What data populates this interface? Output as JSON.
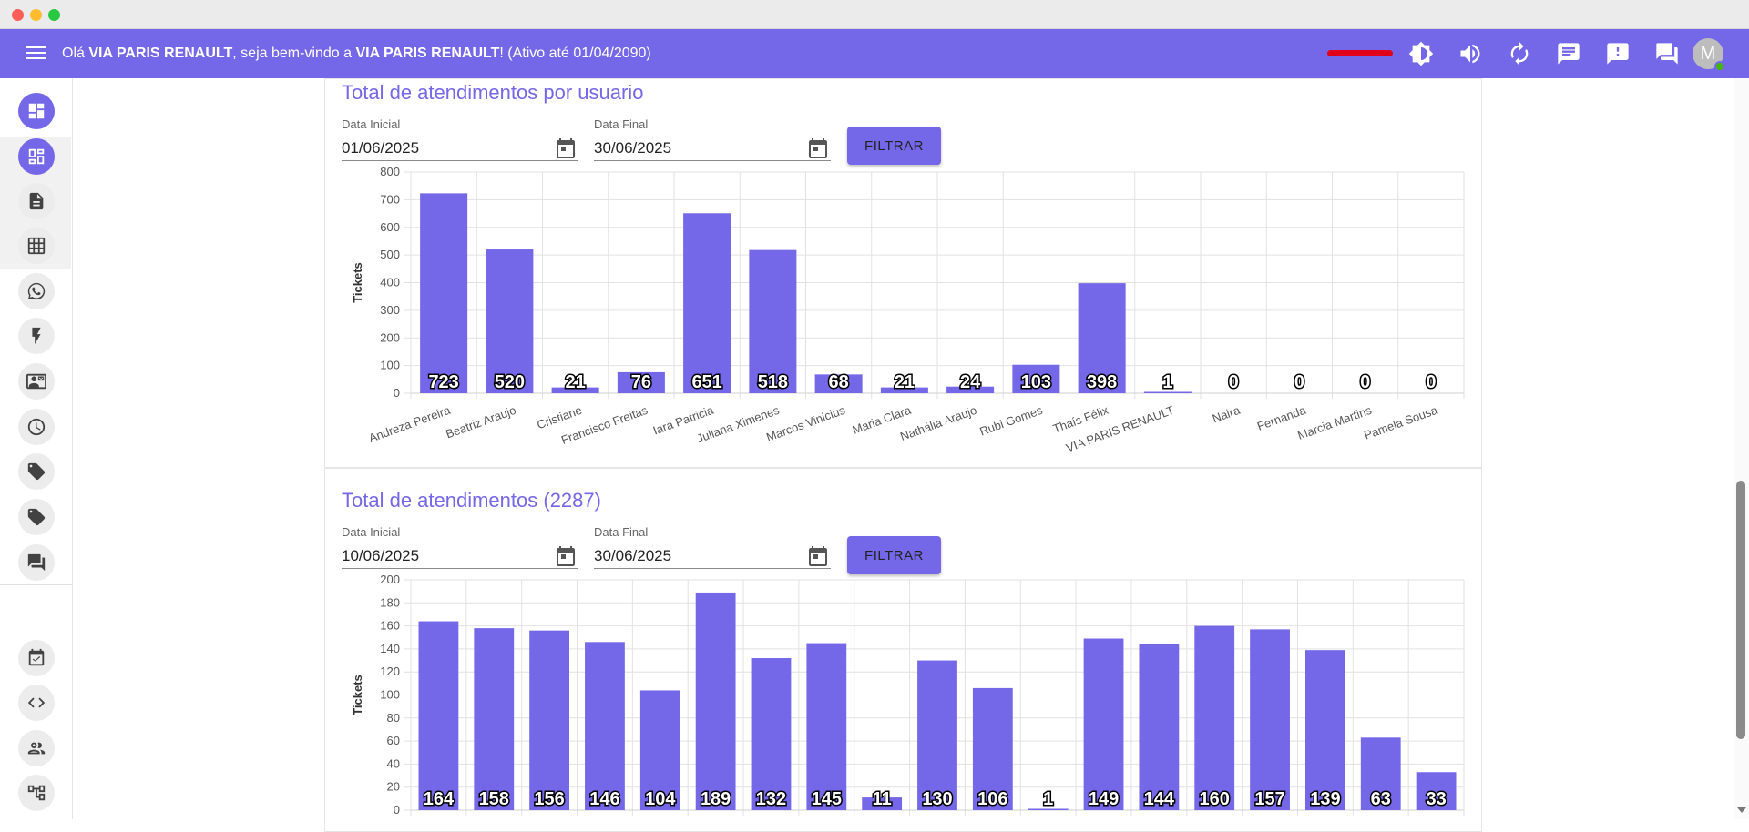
{
  "app": {
    "greeting_prefix": "Olá ",
    "greeting_company": "VIA PARIS RENAULT",
    "greeting_middle": ", seja bem-vindo a ",
    "greeting_company2": "VIA PARIS RENAULT",
    "greeting_suffix": "! (Ativo até 01/04/2090)",
    "avatar_letter": "M",
    "accent_color": "#7467e8",
    "top_icons": [
      "brightness-icon",
      "volume-icon",
      "refresh-icon",
      "chat-icon",
      "feedback-alert-icon",
      "forum-icon"
    ]
  },
  "sidebar": {
    "top_icons": [
      "dashboard-icon",
      "dashboard-alt-icon",
      "document-icon",
      "table-icon",
      "whatsapp-icon",
      "flash-icon",
      "contact-card-icon",
      "clock-icon",
      "tag-icon",
      "tag-alt-icon",
      "forum-icon"
    ],
    "bottom_icons": [
      "task-check-icon",
      "code-icon",
      "users-icon",
      "flow-diagram-icon"
    ]
  },
  "section1": {
    "title": "Total de atendimentos por usuario",
    "start_label": "Data Inicial",
    "start_value": "01/06/2025",
    "end_label": "Data Final",
    "end_value": "30/06/2025",
    "filter_label": "FILTRAR"
  },
  "section2": {
    "title": "Total de atendimentos (2287)",
    "start_label": "Data Inicial",
    "start_value": "10/06/2025",
    "end_label": "Data Final",
    "end_value": "30/06/2025",
    "filter_label": "FILTRAR"
  },
  "chart_data": [
    {
      "type": "bar",
      "title": "",
      "xlabel": "",
      "ylabel": "Tickets",
      "ylim": [
        0,
        800
      ],
      "yticks": [
        0,
        100,
        200,
        300,
        400,
        500,
        600,
        700,
        800
      ],
      "grid": true,
      "color": "#7467e8",
      "categories": [
        "Andreza Pereira",
        "Beatriz Araujo",
        "Cristiane",
        "Francisco Freitas",
        "Iara Patricia",
        "Juliana Ximenes",
        "Marcos Vinicius",
        "Maria Clara",
        "Nathália Araujo",
        "Rubi Gomes",
        "Thaís Félix",
        "VIA PARIS RENAULT",
        "Naira",
        "Fernanda",
        "Marcia Martins",
        "Pamela Sousa"
      ],
      "values": [
        723,
        520,
        21,
        76,
        651,
        518,
        68,
        21,
        24,
        103,
        398,
        1,
        0,
        0,
        0,
        0
      ]
    },
    {
      "type": "bar",
      "title": "",
      "xlabel": "",
      "ylabel": "Tickets",
      "ylim": [
        0,
        200
      ],
      "yticks": [
        0,
        20,
        40,
        60,
        80,
        100,
        120,
        140,
        160,
        180,
        200
      ],
      "grid": true,
      "color": "#7467e8",
      "values": [
        164,
        158,
        156,
        146,
        104,
        189,
        132,
        145,
        11,
        130,
        106,
        1,
        149,
        144,
        160,
        157,
        139,
        63,
        33
      ]
    }
  ]
}
